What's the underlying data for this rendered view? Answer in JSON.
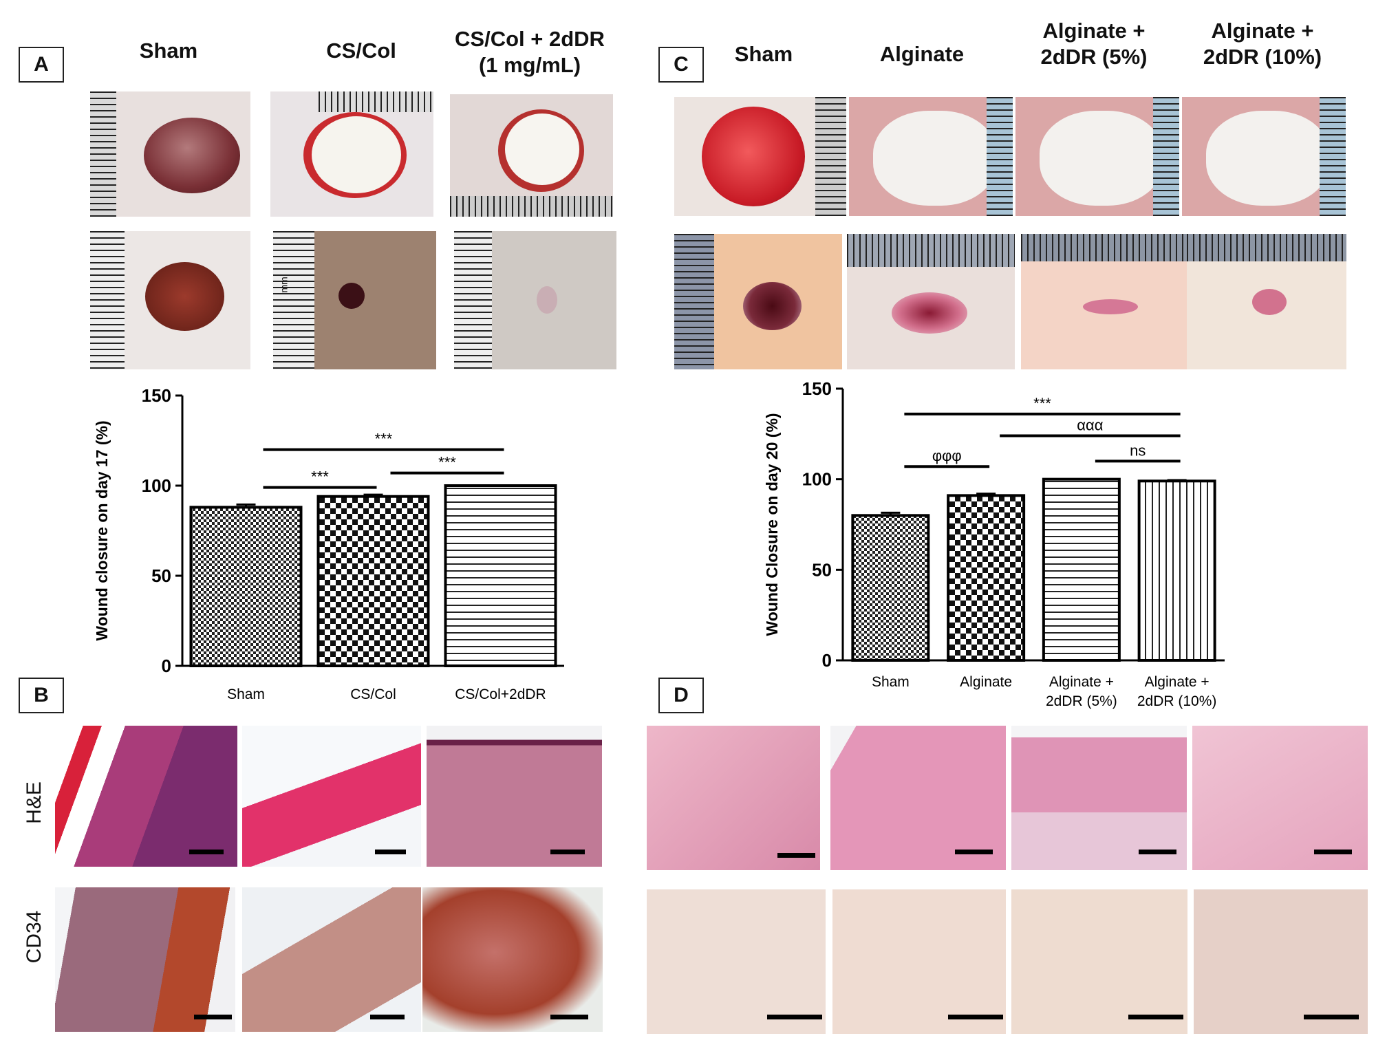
{
  "panel_labels": {
    "a": "A",
    "b": "B",
    "c": "C",
    "d": "D"
  },
  "panel_a": {
    "groups": [
      {
        "title_line1": "Sham",
        "title_line2": ""
      },
      {
        "title_line1": "CS/Col",
        "title_line2": ""
      },
      {
        "title_line1": "CS/Col + 2dDR",
        "title_line2": "(1 mg/mL)"
      }
    ]
  },
  "panel_c": {
    "groups": [
      {
        "title_line1": "Sham",
        "title_line2": ""
      },
      {
        "title_line1": "Alginate",
        "title_line2": ""
      },
      {
        "title_line1": "Alginate +",
        "title_line2": "2dDR (5%)"
      },
      {
        "title_line1": "Alginate +",
        "title_line2": "2dDR (10%)"
      }
    ]
  },
  "panel_b": {
    "row_labels": [
      "H&E",
      "CD34"
    ]
  },
  "ruler_text": "mm",
  "chart_data": [
    {
      "type": "bar",
      "panel": "A",
      "ylabel": "Wound closure on day 17  (%)",
      "ylim": [
        0,
        150
      ],
      "yticks": [
        "0",
        "50",
        "100",
        "150"
      ],
      "categories": [
        "Sham",
        "CS/Col",
        "CS/Col+2dDR"
      ],
      "values": [
        88,
        94,
        100
      ],
      "errors": [
        1.5,
        1,
        0
      ],
      "patterns": [
        "fine-checker",
        "checker",
        "horizontal-lines"
      ],
      "annotations": [
        {
          "from": 0,
          "to": 2,
          "y": 120,
          "text": "***"
        },
        {
          "from": 0,
          "to": 1,
          "y": 99,
          "text": "***"
        },
        {
          "from": 1,
          "to": 2,
          "y": 107,
          "text": "***"
        }
      ]
    },
    {
      "type": "bar",
      "panel": "C",
      "ylabel": "Wound Closure on day 20 (%)",
      "ylim": [
        0,
        150
      ],
      "yticks": [
        "0",
        "50",
        "100",
        "150"
      ],
      "categories": [
        "Sham",
        "Alginate",
        "Alginate +\n2dDR (5%)",
        "Alginate +\n2dDR (10%)"
      ],
      "values": [
        80,
        91,
        100,
        99
      ],
      "errors": [
        1.5,
        1,
        0,
        0.5
      ],
      "patterns": [
        "fine-checker",
        "checker",
        "horizontal-lines",
        "vertical-lines"
      ],
      "annotations": [
        {
          "from": 0,
          "to": 3,
          "y": 136,
          "text": "***"
        },
        {
          "from": 1,
          "to": 3,
          "y": 124,
          "text": "ααα"
        },
        {
          "from": 0,
          "to": 1,
          "y": 107,
          "text": "φφφ"
        },
        {
          "from": 2,
          "to": 3,
          "y": 110,
          "text": "ns"
        }
      ]
    }
  ]
}
